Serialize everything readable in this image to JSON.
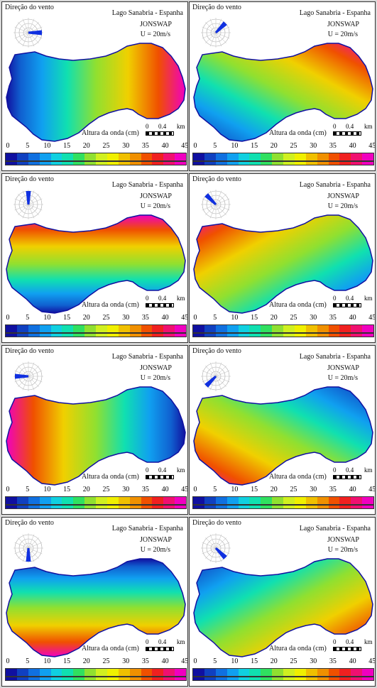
{
  "labels": {
    "wind_direction": "Direção do vento",
    "lake": "Lago Sanabria - Espanha",
    "spectrum": "JONSWAP",
    "wind_speed": "U = 20m/s",
    "wave_height": "Altura da onda (cm)",
    "scale_zero": "0",
    "scale_value": "0.4",
    "scale_unit": "km"
  },
  "colorbar": {
    "ticks": [
      "0",
      "5",
      "10",
      "15",
      "20",
      "25",
      "30",
      "35",
      "40",
      "45"
    ],
    "colors": [
      "#1010a0",
      "#1040c0",
      "#1070e0",
      "#10a0f0",
      "#10d0e0",
      "#10e0b0",
      "#30e060",
      "#90e030",
      "#d0f020",
      "#f0f000",
      "#f0c000",
      "#f09000",
      "#f05000",
      "#f02020",
      "#f01070",
      "#f000c0"
    ]
  },
  "panels": [
    {
      "id": "p1",
      "wind": "E"
    },
    {
      "id": "p2",
      "wind": "NE"
    },
    {
      "id": "p3",
      "wind": "N"
    },
    {
      "id": "p4",
      "wind": "NW"
    },
    {
      "id": "p5",
      "wind": "W"
    },
    {
      "id": "p6",
      "wind": "SW"
    },
    {
      "id": "p7",
      "wind": "S"
    },
    {
      "id": "p8",
      "wind": "SE"
    }
  ]
}
